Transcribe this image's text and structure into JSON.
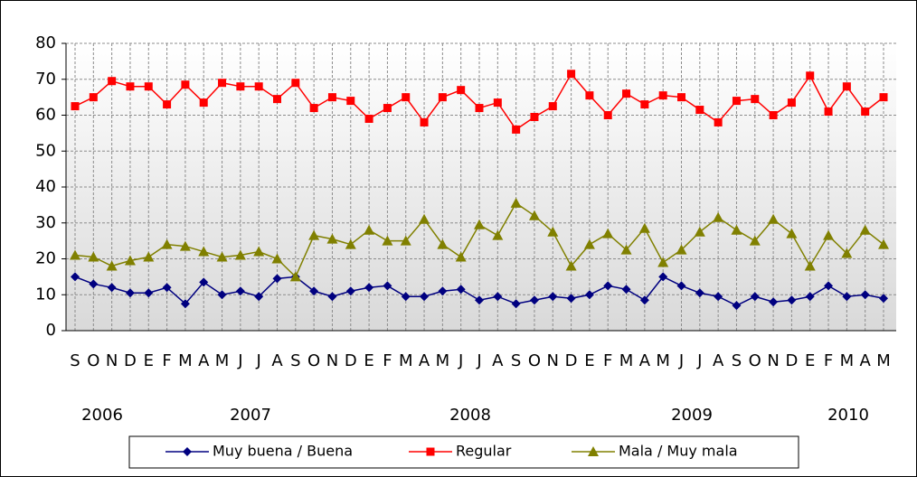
{
  "chart_data": {
    "type": "line",
    "categories": [
      "S",
      "O",
      "N",
      "D",
      "E",
      "F",
      "M",
      "A",
      "M",
      "J",
      "J",
      "A",
      "S",
      "O",
      "N",
      "D",
      "E",
      "F",
      "M",
      "A",
      "M",
      "J",
      "J",
      "A",
      "S",
      "O",
      "N",
      "D",
      "E",
      "F",
      "M",
      "A",
      "M",
      "J",
      "J",
      "A",
      "S",
      "O",
      "N",
      "D",
      "E",
      "F",
      "M",
      "A",
      "M"
    ],
    "year_labels": [
      "2006",
      "2007",
      "2008",
      "2009",
      "2010"
    ],
    "series": [
      {
        "name": "Muy buena / Buena",
        "color": "#000080",
        "marker": "diamond",
        "values": [
          15,
          13,
          12,
          10.5,
          10.5,
          12,
          7.5,
          13.5,
          10,
          11,
          9.5,
          14.5,
          15,
          11,
          9.5,
          11,
          12,
          12.5,
          9.5,
          9.5,
          11,
          11.5,
          8.5,
          9.5,
          7.5,
          8.5,
          9.5,
          9,
          10,
          12.5,
          11.5,
          8.5,
          15,
          12.5,
          10.5,
          9.5,
          7,
          9.5,
          8,
          8.5,
          9.5,
          12.5,
          9.5,
          10,
          9
        ]
      },
      {
        "name": "Regular",
        "color": "#ff0000",
        "marker": "square",
        "values": [
          62.5,
          65,
          69.5,
          68,
          68,
          63,
          68.5,
          63.5,
          69,
          68,
          68,
          64.5,
          69,
          62,
          65,
          64,
          59,
          62,
          65,
          58,
          65,
          67,
          62,
          63.5,
          56,
          59.5,
          62.5,
          71.5,
          65.5,
          60,
          66,
          63,
          65.5,
          65,
          61.5,
          58,
          64,
          64.5,
          60,
          63.5,
          71,
          61,
          68,
          61,
          65
        ]
      },
      {
        "name": "Mala / Muy mala",
        "color": "#808000",
        "marker": "triangle",
        "values": [
          21,
          20.5,
          18,
          19.5,
          20.5,
          24,
          23.5,
          22,
          20.5,
          21,
          22,
          20,
          15,
          26.5,
          25.5,
          24,
          28,
          25,
          25,
          31,
          24,
          20.5,
          29.5,
          26.5,
          35.5,
          32,
          27.5,
          18,
          24,
          27,
          22.5,
          28.5,
          19,
          22.5,
          27.5,
          31.5,
          28,
          25,
          31,
          27,
          18,
          26.5,
          21.5,
          28,
          24
        ]
      }
    ],
    "ylim": [
      0,
      80
    ],
    "yticks": [
      0,
      10,
      20,
      30,
      40,
      50,
      60,
      70,
      80
    ],
    "grid": true,
    "legend": "bottom"
  }
}
